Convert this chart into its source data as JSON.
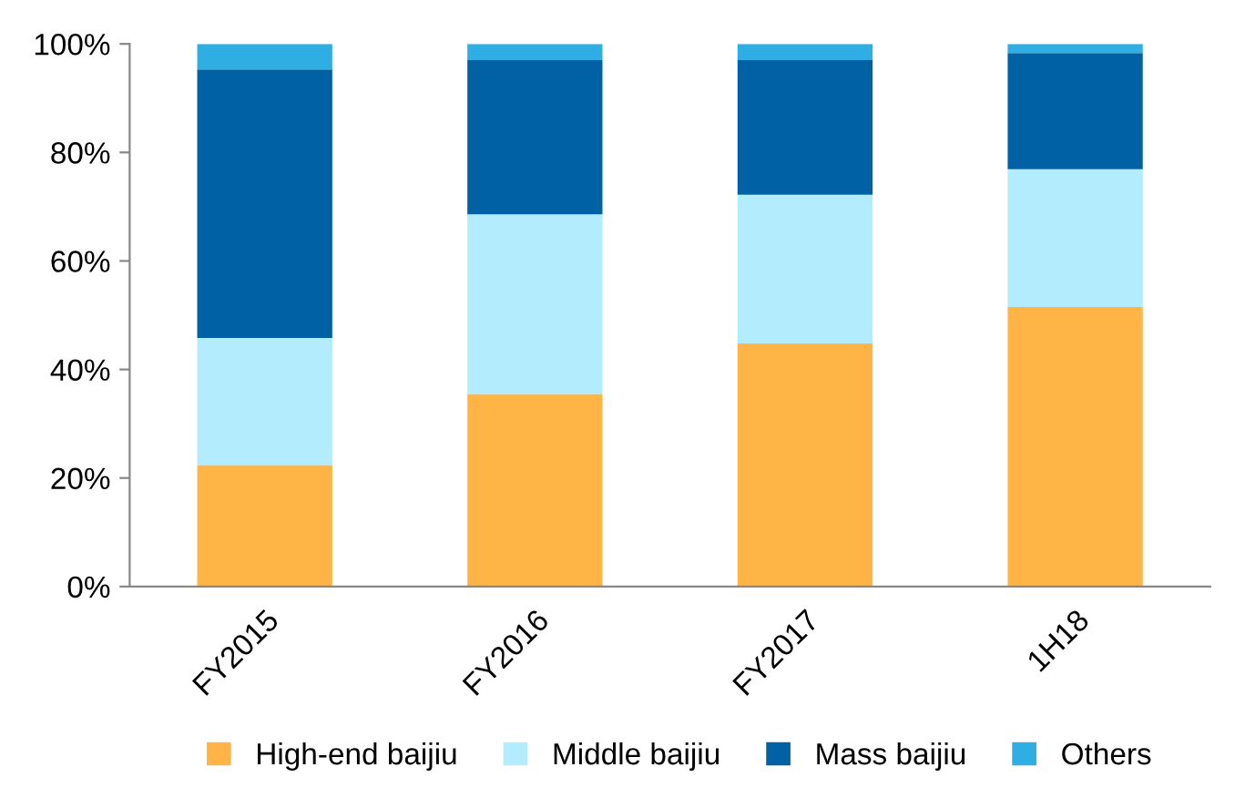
{
  "chart_data": {
    "type": "bar",
    "stacked": true,
    "categories": [
      "FY2015",
      "FY2016",
      "FY2017",
      "1H18"
    ],
    "series": [
      {
        "name": "High-end baijiu",
        "color": "#ffb445",
        "values": [
          22.4,
          35.5,
          44.8,
          51.5
        ]
      },
      {
        "name": "Middle baijiu",
        "color": "#b3ecfd",
        "values": [
          23.4,
          33.1,
          27.4,
          25.4
        ]
      },
      {
        "name": "Mass baijiu",
        "color": "#0062a4",
        "values": [
          49.5,
          28.4,
          24.8,
          21.4
        ]
      },
      {
        "name": "Others",
        "color": "#2eaee3",
        "values": [
          4.7,
          3.0,
          3.0,
          1.7
        ]
      }
    ],
    "ylim": [
      0,
      100
    ],
    "yticks": [
      {
        "value": 0,
        "label": "0%"
      },
      {
        "value": 20,
        "label": "20%"
      },
      {
        "value": 40,
        "label": "40%"
      },
      {
        "value": 60,
        "label": "60%"
      },
      {
        "value": 80,
        "label": "80%"
      },
      {
        "value": 100,
        "label": "100%"
      }
    ],
    "grid": false,
    "legend": "bottom"
  }
}
